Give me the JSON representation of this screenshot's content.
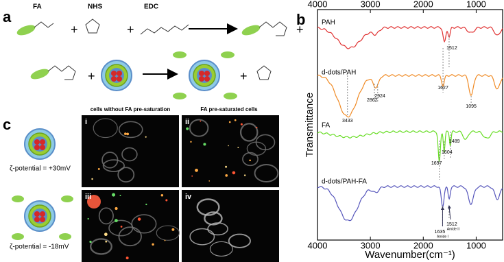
{
  "panel_labels": [
    "a",
    "b",
    "c"
  ],
  "scheme": {
    "reagents": [
      "FA",
      "NHS",
      "EDC"
    ]
  },
  "spectra": {
    "xlim": [
      4000,
      500
    ],
    "xticks": [
      4000,
      3000,
      2000,
      1000
    ],
    "xlabel": "Wavenumber(cm⁻¹)",
    "ylabel": "Transmittance",
    "traces": [
      "PAH",
      "d-dots/PAH",
      "FA",
      "d-dots/PAH-FA"
    ],
    "peaks": [
      1512,
      2924,
      2862,
      1627,
      1095,
      3433,
      1604,
      1489,
      1697,
      1635,
      1512
    ],
    "band_labels": [
      "Amide I",
      "Amide II"
    ]
  },
  "cells": {
    "headers": [
      "cells without FA pre-saturation",
      "FA pre-saturated cells"
    ],
    "panels": [
      "i",
      "ii",
      "iii",
      "iv"
    ],
    "zeta": [
      "ζ-potential = +30mV",
      "ζ-potential = -18mV"
    ]
  }
}
